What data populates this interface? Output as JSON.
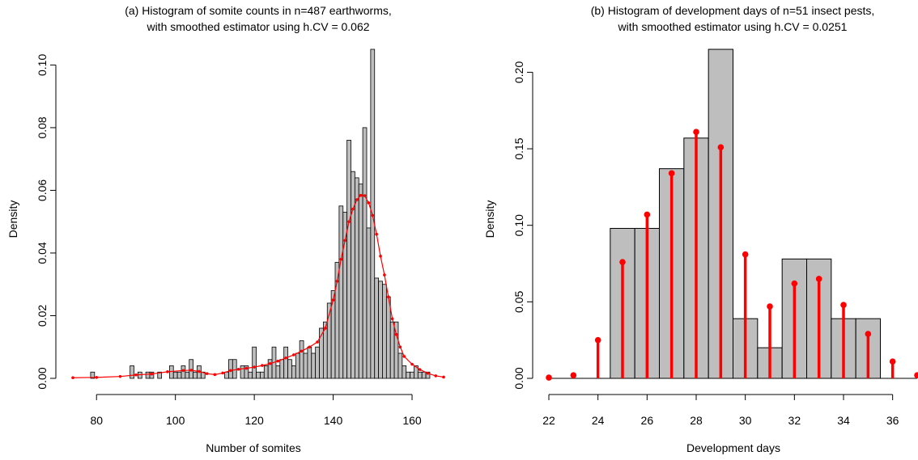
{
  "chart_data": [
    {
      "type": "bar",
      "title": "(a) Histogram of somite counts in n=487 earthworms,",
      "subtitle": "with smoothed estimator using h.CV = 0.062",
      "xlabel": "Number of somites",
      "ylabel": "Density",
      "xlim": [
        74,
        168
      ],
      "ylim": [
        0,
        0.105
      ],
      "x_ticks": [
        "80",
        "100",
        "120",
        "140",
        "160"
      ],
      "y_ticks": [
        "0.00",
        "0.02",
        "0.04",
        "0.06",
        "0.08",
        "0.10"
      ],
      "histogram": {
        "bin_width": 1,
        "bins": [
          {
            "x": 79,
            "density": 0.002
          },
          {
            "x": 89,
            "density": 0.004
          },
          {
            "x": 91,
            "density": 0.002
          },
          {
            "x": 93,
            "density": 0.002
          },
          {
            "x": 94,
            "density": 0.002
          },
          {
            "x": 96,
            "density": 0.002
          },
          {
            "x": 99,
            "density": 0.004
          },
          {
            "x": 100,
            "density": 0.002
          },
          {
            "x": 101,
            "density": 0.002
          },
          {
            "x": 102,
            "density": 0.004
          },
          {
            "x": 103,
            "density": 0.002
          },
          {
            "x": 104,
            "density": 0.006
          },
          {
            "x": 105,
            "density": 0.002
          },
          {
            "x": 106,
            "density": 0.004
          },
          {
            "x": 107,
            "density": 0.002
          },
          {
            "x": 113,
            "density": 0.002
          },
          {
            "x": 114,
            "density": 0.006
          },
          {
            "x": 115,
            "density": 0.006
          },
          {
            "x": 117,
            "density": 0.004
          },
          {
            "x": 118,
            "density": 0.004
          },
          {
            "x": 119,
            "density": 0.002
          },
          {
            "x": 120,
            "density": 0.01
          },
          {
            "x": 121,
            "density": 0.002
          },
          {
            "x": 122,
            "density": 0.002
          },
          {
            "x": 123,
            "density": 0.004
          },
          {
            "x": 124,
            "density": 0.006
          },
          {
            "x": 125,
            "density": 0.01
          },
          {
            "x": 126,
            "density": 0.004
          },
          {
            "x": 127,
            "density": 0.006
          },
          {
            "x": 128,
            "density": 0.01
          },
          {
            "x": 129,
            "density": 0.006
          },
          {
            "x": 130,
            "density": 0.004
          },
          {
            "x": 131,
            "density": 0.008
          },
          {
            "x": 132,
            "density": 0.012
          },
          {
            "x": 133,
            "density": 0.008
          },
          {
            "x": 134,
            "density": 0.01
          },
          {
            "x": 135,
            "density": 0.008
          },
          {
            "x": 136,
            "density": 0.01
          },
          {
            "x": 137,
            "density": 0.016
          },
          {
            "x": 138,
            "density": 0.018
          },
          {
            "x": 139,
            "density": 0.024
          },
          {
            "x": 140,
            "density": 0.028
          },
          {
            "x": 141,
            "density": 0.037
          },
          {
            "x": 142,
            "density": 0.055
          },
          {
            "x": 143,
            "density": 0.053
          },
          {
            "x": 144,
            "density": 0.076
          },
          {
            "x": 145,
            "density": 0.066
          },
          {
            "x": 146,
            "density": 0.064
          },
          {
            "x": 147,
            "density": 0.062
          },
          {
            "x": 148,
            "density": 0.08
          },
          {
            "x": 149,
            "density": 0.048
          },
          {
            "x": 150,
            "density": 0.105
          },
          {
            "x": 151,
            "density": 0.032
          },
          {
            "x": 152,
            "density": 0.031
          },
          {
            "x": 153,
            "density": 0.03
          },
          {
            "x": 154,
            "density": 0.026
          },
          {
            "x": 155,
            "density": 0.018
          },
          {
            "x": 156,
            "density": 0.018
          },
          {
            "x": 157,
            "density": 0.008
          },
          {
            "x": 158,
            "density": 0.004
          },
          {
            "x": 159,
            "density": 0.002
          },
          {
            "x": 160,
            "density": 0.002
          },
          {
            "x": 161,
            "density": 0.004
          },
          {
            "x": 162,
            "density": 0.002
          },
          {
            "x": 163,
            "density": 0.002
          },
          {
            "x": 164,
            "density": 0.002
          }
        ]
      },
      "smoothed_curve": {
        "color": "#ff0000",
        "x": [
          74,
          80,
          86,
          90,
          94,
          98,
          102,
          104,
          106,
          108,
          110,
          112,
          114,
          116,
          118,
          120,
          122,
          124,
          126,
          128,
          130,
          132,
          134,
          136,
          138,
          140,
          141,
          142,
          143,
          144,
          145,
          146,
          147,
          148,
          149,
          150,
          151,
          152,
          153,
          154,
          155,
          156,
          157,
          158,
          160,
          162,
          164,
          166,
          168
        ],
        "y": [
          0.0002,
          0.0003,
          0.0006,
          0.0011,
          0.0014,
          0.0021,
          0.0025,
          0.0026,
          0.0022,
          0.0015,
          0.0012,
          0.0017,
          0.0025,
          0.0029,
          0.0032,
          0.0036,
          0.0041,
          0.0047,
          0.0055,
          0.0065,
          0.0075,
          0.0087,
          0.01,
          0.0116,
          0.016,
          0.025,
          0.031,
          0.038,
          0.044,
          0.05,
          0.054,
          0.057,
          0.0584,
          0.0583,
          0.056,
          0.052,
          0.046,
          0.039,
          0.033,
          0.026,
          0.019,
          0.014,
          0.01,
          0.007,
          0.0045,
          0.0028,
          0.0016,
          0.0008,
          0.0004
        ]
      }
    },
    {
      "type": "bar",
      "title": "(b) Histogram of development days of n=51 insect pests,",
      "subtitle": "with smoothed estimator using h.CV = 0.0251",
      "xlabel": "Development days",
      "ylabel": "Density",
      "xlim": [
        22,
        37
      ],
      "ylim": [
        0,
        0.215
      ],
      "x_ticks": [
        "22",
        "24",
        "26",
        "28",
        "30",
        "32",
        "34",
        "36"
      ],
      "y_ticks": [
        "0.00",
        "0.05",
        "0.10",
        "0.15",
        "0.20"
      ],
      "histogram": {
        "bins": [
          {
            "from": 24.5,
            "to": 25.5,
            "density": 0.098
          },
          {
            "from": 25.5,
            "to": 26.5,
            "density": 0.098
          },
          {
            "from": 26.5,
            "to": 27.5,
            "density": 0.137
          },
          {
            "from": 27.5,
            "to": 28.5,
            "density": 0.157
          },
          {
            "from": 28.5,
            "to": 29.5,
            "density": 0.215
          },
          {
            "from": 29.5,
            "to": 30.5,
            "density": 0.039
          },
          {
            "from": 30.5,
            "to": 31.5,
            "density": 0.02
          },
          {
            "from": 31.5,
            "to": 32.5,
            "density": 0.078
          },
          {
            "from": 32.5,
            "to": 33.5,
            "density": 0.078
          },
          {
            "from": 33.5,
            "to": 34.5,
            "density": 0.039
          },
          {
            "from": 34.5,
            "to": 35.5,
            "density": 0.039
          }
        ]
      },
      "smoothed_estimator": {
        "color": "#ff0000",
        "x": [
          22,
          23,
          24,
          25,
          26,
          27,
          28,
          29,
          30,
          31,
          32,
          33,
          34,
          35,
          36,
          37
        ],
        "y": [
          0.0005,
          0.002,
          0.025,
          0.076,
          0.107,
          0.134,
          0.161,
          0.151,
          0.081,
          0.047,
          0.062,
          0.065,
          0.048,
          0.029,
          0.011,
          0.002
        ]
      }
    }
  ]
}
